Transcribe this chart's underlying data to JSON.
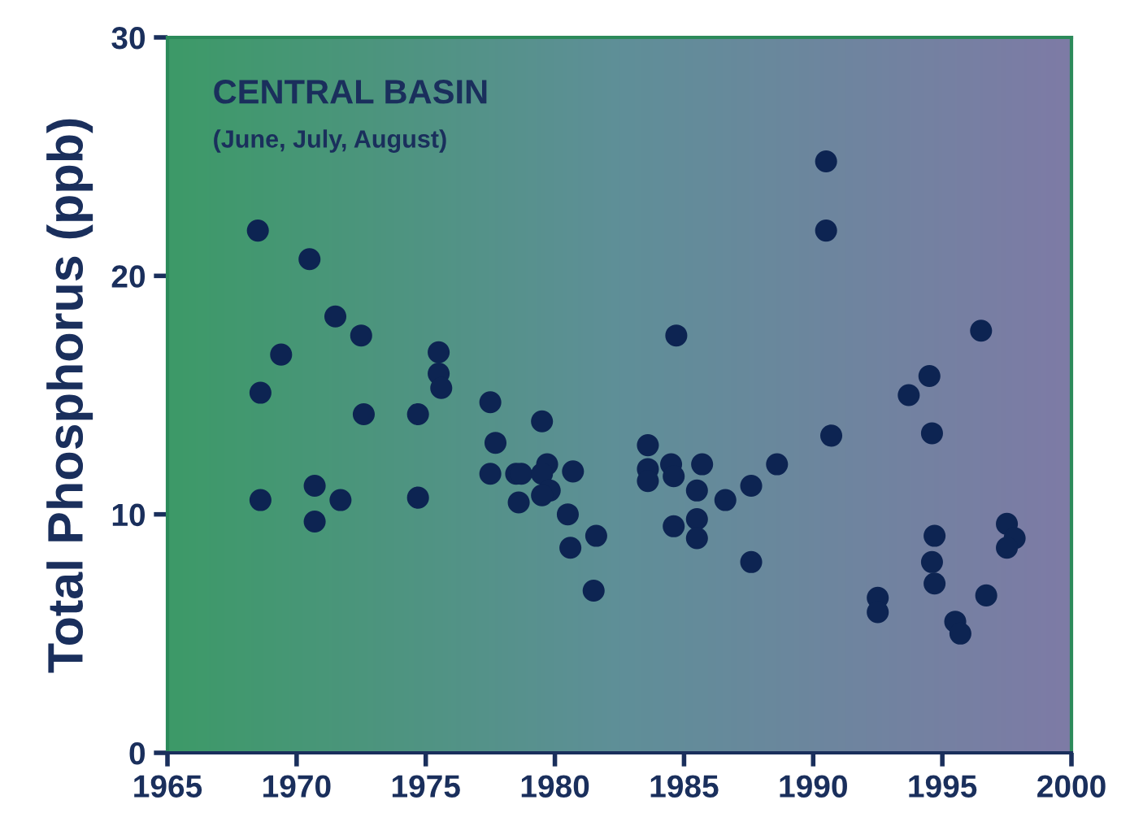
{
  "chart_data": {
    "type": "scatter",
    "title": "CENTRAL BASIN",
    "subtitle": "(June, July, August)",
    "ylabel": "Total Phosphorus (ppb)",
    "x": [
      1968.5,
      1968.6,
      1968.6,
      1969.4,
      1970.5,
      1970.7,
      1970.7,
      1971.5,
      1971.7,
      1972.5,
      1972.6,
      1974.7,
      1974.7,
      1975.5,
      1975.5,
      1975.6,
      1977.5,
      1977.7,
      1977.5,
      1978.5,
      1978.7,
      1978.6,
      1979.5,
      1979.7,
      1979.5,
      1979.8,
      1979.5,
      1980.7,
      1980.5,
      1980.6,
      1981.6,
      1981.5,
      1983.6,
      1983.6,
      1983.6,
      1984.5,
      1984.6,
      1984.7,
      1984.6,
      1985.7,
      1985.5,
      1985.5,
      1985.5,
      1986.6,
      1987.6,
      1987.6,
      1988.6,
      1990.5,
      1990.5,
      1990.7,
      1992.5,
      1992.5,
      1993.7,
      1994.5,
      1994.6,
      1994.7,
      1994.6,
      1994.7,
      1995.5,
      1995.7,
      1996.7,
      1996.5,
      1997.5,
      1997.8,
      1997.5
    ],
    "values": [
      21.9,
      15.1,
      10.6,
      16.7,
      20.7,
      11.2,
      9.7,
      18.3,
      10.6,
      17.5,
      14.2,
      14.2,
      10.7,
      16.8,
      15.9,
      15.3,
      14.7,
      13.0,
      11.7,
      11.7,
      11.7,
      10.5,
      13.9,
      12.1,
      11.7,
      11.0,
      10.8,
      11.8,
      10.0,
      8.6,
      9.1,
      6.8,
      12.9,
      11.9,
      11.4,
      12.1,
      11.6,
      17.5,
      9.5,
      12.1,
      11.0,
      9.8,
      9.0,
      10.6,
      11.2,
      8.0,
      12.1,
      24.8,
      21.9,
      13.3,
      6.5,
      5.9,
      15.0,
      15.8,
      13.4,
      9.1,
      8.0,
      7.1,
      5.5,
      5.0,
      6.6,
      17.7,
      9.6,
      9.0,
      8.6
    ],
    "color": "#0d2452",
    "marker": "circle",
    "xlim": [
      1965,
      2000
    ],
    "xticks": [
      1965,
      1970,
      1975,
      1980,
      1985,
      1990,
      1995,
      2000
    ],
    "ylim": [
      0,
      30
    ],
    "yticks": [
      0,
      10,
      20,
      30
    ],
    "grid": false,
    "legend": false
  }
}
